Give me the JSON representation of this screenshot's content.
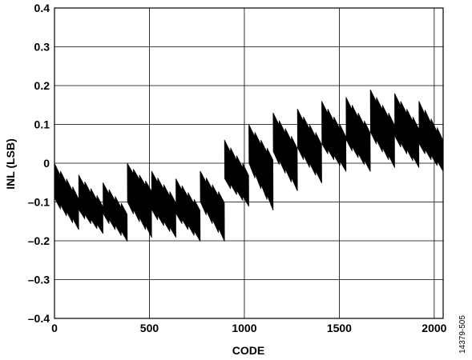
{
  "chart_data": {
    "type": "line",
    "title": "",
    "xlabel": "CODE",
    "ylabel": "INL (LSB)",
    "xlim": [
      0,
      2047
    ],
    "ylim": [
      -0.4,
      0.4
    ],
    "grid": true,
    "legend": "none",
    "x_ticks": [
      0,
      500,
      1000,
      1500,
      2000
    ],
    "x_tick_labels": [
      "0",
      "500",
      "1000",
      "1500",
      "2000"
    ],
    "y_ticks": [
      0.4,
      0.3,
      0.2,
      0.1,
      0,
      -0.1,
      -0.2,
      -0.3,
      -0.4
    ],
    "y_tick_labels": [
      "0.4",
      "0.3",
      "0.2",
      "0.1",
      "0",
      "–0.1",
      "–0.2",
      "–0.3",
      "–0.4"
    ],
    "series": [
      {
        "color": "#000000",
        "segment_width_codes": 128,
        "segment_start_codes": [
          0,
          128,
          256,
          384,
          512,
          640,
          768,
          896,
          1024,
          1152,
          1280,
          1408,
          1536,
          1664,
          1792,
          1920
        ],
        "segment_upper_start": [
          0.0,
          -0.03,
          -0.05,
          0.0,
          -0.02,
          -0.04,
          -0.02,
          0.06,
          0.1,
          0.13,
          0.14,
          0.16,
          0.17,
          0.19,
          0.18,
          0.16
        ],
        "segment_upper_end": [
          -0.08,
          -0.1,
          -0.12,
          -0.06,
          -0.09,
          -0.11,
          -0.09,
          -0.02,
          0.02,
          0.05,
          0.06,
          0.08,
          0.09,
          0.11,
          0.1,
          0.07
        ],
        "segment_lower_start": [
          -0.09,
          -0.12,
          -0.13,
          -0.1,
          -0.12,
          -0.13,
          -0.1,
          -0.04,
          0.0,
          0.03,
          0.04,
          0.05,
          0.06,
          0.08,
          0.07,
          0.05
        ],
        "segment_lower_end": [
          -0.16,
          -0.17,
          -0.19,
          -0.18,
          -0.18,
          -0.19,
          -0.19,
          -0.1,
          -0.11,
          -0.06,
          -0.04,
          -0.01,
          -0.01,
          0.0,
          0.0,
          -0.01
        ],
        "sub_sawtooth_period_codes": 32
      }
    ]
  },
  "figure_id": "14379-505"
}
